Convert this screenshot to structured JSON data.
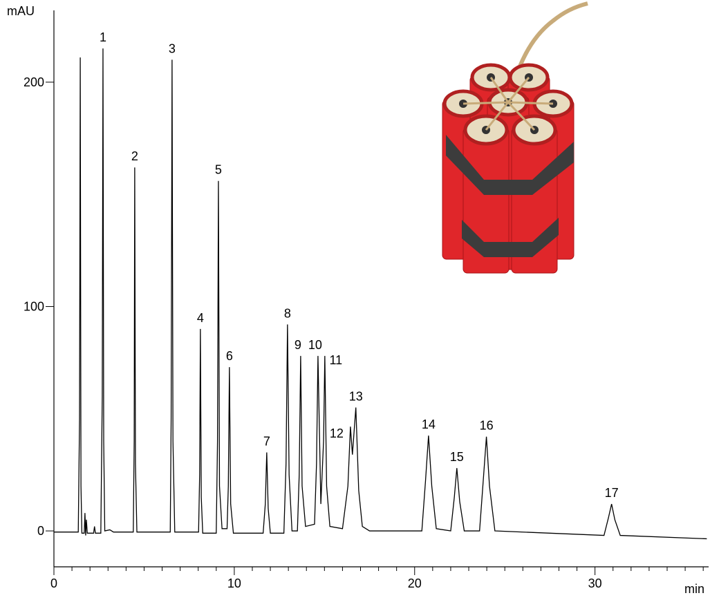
{
  "chart_data": {
    "type": "line",
    "y_label": "mAU",
    "x_label": "min",
    "xlim": [
      0,
      36.3
    ],
    "ylim": [
      -16,
      232
    ],
    "xticks": [
      0,
      10,
      20,
      30
    ],
    "xticks_minor": [
      1,
      2,
      3,
      4,
      5,
      6,
      7,
      8,
      9,
      11,
      12,
      13,
      14,
      15,
      16,
      17,
      18,
      19,
      21,
      22,
      23,
      24,
      25,
      26,
      27,
      28,
      29,
      31,
      32,
      33,
      34,
      35,
      36
    ],
    "yticks": [
      0,
      100,
      200
    ],
    "color": "#000000",
    "x": [
      0,
      1.35,
      1.42,
      1.46,
      1.5,
      1.55,
      1.68,
      1.72,
      1.76,
      1.8,
      1.85,
      2.2,
      2.25,
      2.3,
      2.6,
      2.68,
      2.72,
      2.76,
      2.82,
      3.1,
      3.3,
      4.4,
      4.45,
      4.48,
      4.52,
      4.6,
      6.45,
      6.5,
      6.55,
      6.6,
      6.7,
      8.02,
      8.08,
      8.12,
      8.17,
      8.25,
      9.0,
      9.07,
      9.12,
      9.18,
      9.32,
      9.6,
      9.67,
      9.73,
      9.8,
      9.95,
      11.6,
      11.72,
      11.8,
      11.88,
      12.0,
      12.75,
      12.87,
      12.95,
      13.04,
      13.2,
      13.5,
      13.6,
      13.68,
      13.76,
      13.95,
      14.45,
      14.56,
      14.64,
      14.8,
      14.95,
      15.02,
      15.12,
      15.3,
      16.0,
      16.3,
      16.44,
      16.55,
      16.74,
      16.9,
      17.1,
      17.5,
      20.4,
      20.6,
      20.77,
      20.95,
      21.2,
      22.0,
      22.2,
      22.34,
      22.5,
      22.75,
      23.6,
      23.8,
      23.98,
      24.15,
      24.45,
      30.5,
      30.75,
      30.92,
      31.1,
      31.4,
      36.2
    ],
    "values": [
      -0.5,
      -0.5,
      50,
      211,
      20,
      -1,
      -1,
      8,
      -2,
      5,
      -1,
      -1,
      2,
      -1,
      -1,
      60,
      215,
      40,
      0,
      0.5,
      -0.5,
      -0.5,
      40,
      162,
      30,
      -0.5,
      -0.5,
      50,
      210,
      40,
      -0.5,
      -0.5,
      25,
      90,
      15,
      -1,
      -1,
      40,
      156,
      20,
      1,
      1,
      20,
      73,
      12,
      -1,
      -1,
      12,
      35,
      10,
      -1,
      -1,
      30,
      92,
      25,
      0,
      0,
      25,
      78,
      20,
      2,
      3,
      30,
      78,
      12,
      40,
      78,
      20,
      2,
      1,
      20,
      46.5,
      34,
      55,
      18,
      2,
      0,
      0,
      22,
      42.5,
      20,
      1,
      0,
      15,
      28,
      13,
      0,
      0,
      22,
      42,
      20,
      0,
      -2,
      6,
      12,
      5,
      -2,
      -3.5
    ],
    "peaks": [
      {
        "label": "1",
        "rt": 2.72,
        "height": 215
      },
      {
        "label": "2",
        "rt": 4.48,
        "height": 162
      },
      {
        "label": "3",
        "rt": 6.55,
        "height": 210
      },
      {
        "label": "4",
        "rt": 8.12,
        "height": 90
      },
      {
        "label": "5",
        "rt": 9.12,
        "height": 156
      },
      {
        "label": "6",
        "rt": 9.73,
        "height": 73
      },
      {
        "label": "7",
        "rt": 11.8,
        "height": 35
      },
      {
        "label": "8",
        "rt": 12.95,
        "height": 92
      },
      {
        "label": "9",
        "rt": 13.68,
        "height": 78
      },
      {
        "label": "10",
        "rt": 14.64,
        "height": 78
      },
      {
        "label": "11",
        "rt": 15.02,
        "height": 78
      },
      {
        "label": "12",
        "rt": 16.44,
        "height": 46.5
      },
      {
        "label": "13",
        "rt": 16.74,
        "height": 55
      },
      {
        "label": "14",
        "rt": 20.77,
        "height": 42.5
      },
      {
        "label": "15",
        "rt": 22.34,
        "height": 28
      },
      {
        "label": "16",
        "rt": 23.98,
        "height": 42
      },
      {
        "label": "17",
        "rt": 30.92,
        "height": 12
      }
    ]
  }
}
